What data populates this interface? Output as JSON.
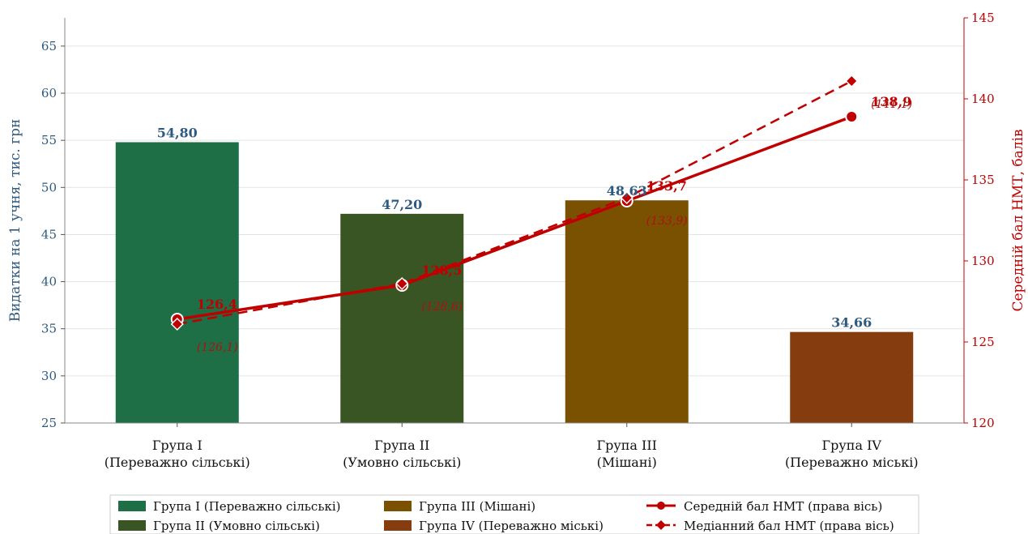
{
  "chart_data": {
    "type": "bar",
    "categories": [
      [
        "Група I",
        "(Переважно сільські)"
      ],
      [
        "Група II",
        "(Умовно сільські)"
      ],
      [
        "Група III",
        "(Мішані)"
      ],
      [
        "Група IV",
        "(Переважно міські)"
      ]
    ],
    "ylabel": "Видатки на 1 учня, тис. грн",
    "y2label": "Середній бал НМТ, балів",
    "ylim": [
      25,
      68
    ],
    "y2lim": [
      120,
      145
    ],
    "yticks": [
      25,
      30,
      35,
      40,
      45,
      50,
      55,
      60,
      65
    ],
    "y2ticks": [
      120,
      125,
      130,
      135,
      140,
      145
    ],
    "grid": true,
    "bars": {
      "values": [
        54.8,
        47.2,
        48.63,
        34.66
      ],
      "labels": [
        "54,80",
        "47,20",
        "48,63",
        "34,66"
      ],
      "colors": [
        "#1e6e46",
        "#3a5524",
        "#7a5100",
        "#853c0e"
      ]
    },
    "series": [
      {
        "name": "Середній бал НМТ (права вісь)",
        "axis": "right",
        "values": [
          126.4,
          128.5,
          133.7,
          138.9
        ],
        "labels": [
          "126,4",
          "128,5",
          "133,7",
          "138,9"
        ],
        "color": "#c00000",
        "style": "solid",
        "marker": "circle"
      },
      {
        "name": "Медіанний бал НМТ (права вісь)",
        "axis": "right",
        "values": [
          126.1,
          128.6,
          133.9,
          141.1
        ],
        "labels": [
          "(126,1)",
          "(128,6)",
          "(133,9)",
          "(141,1)"
        ],
        "color": "#c00000",
        "style": "dashed",
        "marker": "diamond"
      }
    ],
    "legend": {
      "placement": "bottom-center",
      "items": [
        "Група I (Переважно сільські)",
        "Група II (Умовно сільські)",
        "Група III (Мішані)",
        "Група IV (Переважно міські)",
        "Середній бал НМТ (права вісь)",
        "Медіанний бал НМТ (права вісь)"
      ]
    }
  }
}
